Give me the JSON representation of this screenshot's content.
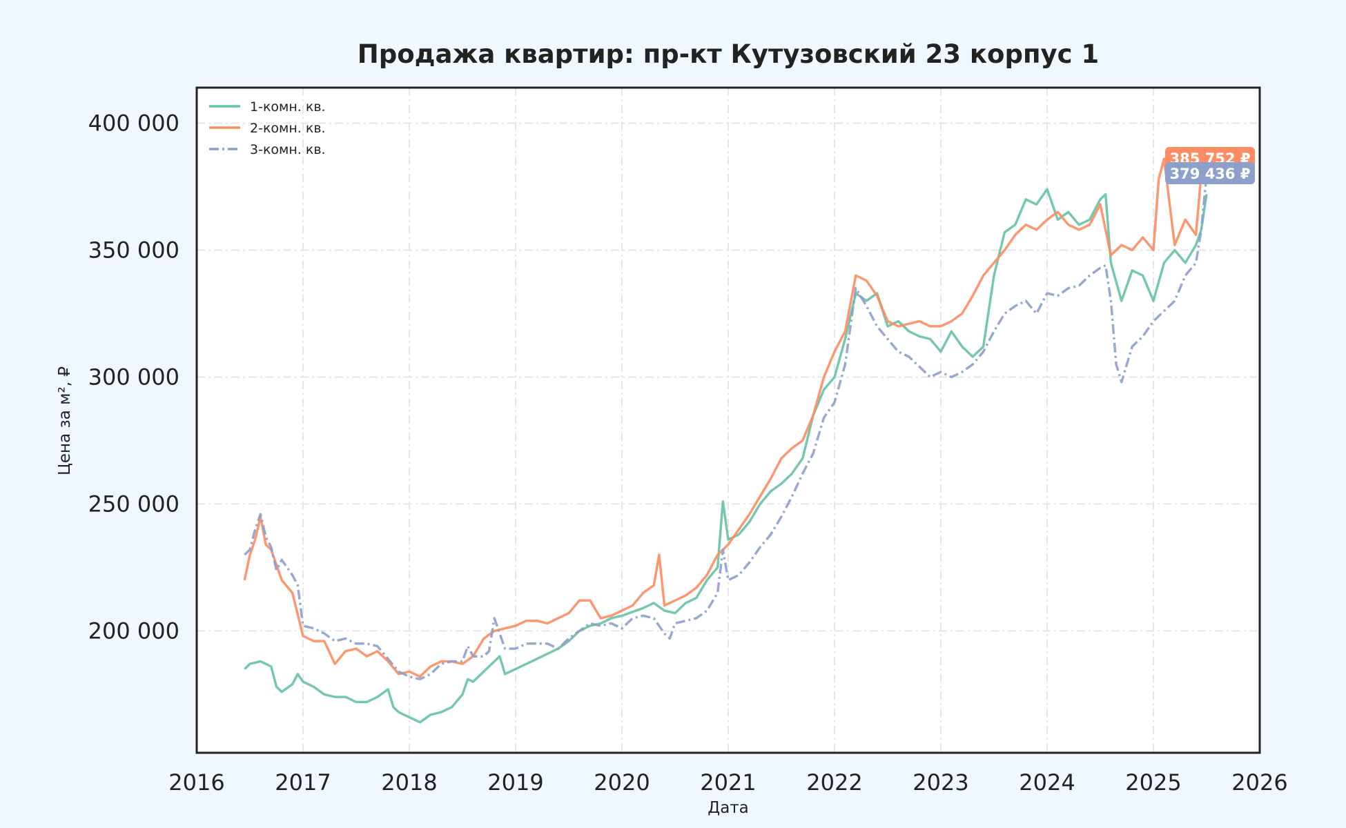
{
  "chart_data": {
    "type": "line",
    "title": "Продажа квартир: пр-кт Кутузовский 23 корпус 1",
    "xlabel": "Дата",
    "ylabel": "Цена за м², ₽",
    "xlim": [
      2016.0,
      2026.0
    ],
    "ylim": [
      152000,
      414000
    ],
    "x_ticks": [
      2016,
      2017,
      2018,
      2019,
      2020,
      2021,
      2022,
      2023,
      2024,
      2025,
      2026
    ],
    "y_ticks": [
      200000,
      250000,
      300000,
      350000,
      400000
    ],
    "y_tick_labels": [
      "200 000",
      "250 000",
      "300 000",
      "350 000",
      "400 000"
    ],
    "grid": true,
    "legend_position": "top-left",
    "series": [
      {
        "name": "1-комн. кв.",
        "color": "#66c2a5",
        "style": "solid",
        "x": [
          2016.45,
          2016.5,
          2016.6,
          2016.7,
          2016.75,
          2016.8,
          2016.9,
          2016.95,
          2017.0,
          2017.1,
          2017.2,
          2017.3,
          2017.4,
          2017.5,
          2017.6,
          2017.7,
          2017.8,
          2017.85,
          2017.9,
          2018.0,
          2018.1,
          2018.2,
          2018.3,
          2018.4,
          2018.5,
          2018.55,
          2018.6,
          2018.7,
          2018.8,
          2018.85,
          2018.9,
          2019.0,
          2019.2,
          2019.4,
          2019.5,
          2019.6,
          2019.7,
          2019.8,
          2019.9,
          2020.0,
          2020.2,
          2020.3,
          2020.4,
          2020.5,
          2020.6,
          2020.7,
          2020.8,
          2020.9,
          2020.95,
          2021.0,
          2021.1,
          2021.2,
          2021.3,
          2021.4,
          2021.5,
          2021.6,
          2021.7,
          2021.8,
          2021.9,
          2022.0,
          2022.1,
          2022.2,
          2022.3,
          2022.4,
          2022.5,
          2022.6,
          2022.7,
          2022.8,
          2022.9,
          2023.0,
          2023.1,
          2023.2,
          2023.3,
          2023.4,
          2023.5,
          2023.6,
          2023.7,
          2023.8,
          2023.9,
          2024.0,
          2024.1,
          2024.2,
          2024.3,
          2024.4,
          2024.5,
          2024.55,
          2024.6,
          2024.7,
          2024.8,
          2024.9,
          2025.0,
          2025.1,
          2025.2,
          2025.3,
          2025.4,
          2025.45,
          2025.5
        ],
        "y": [
          185000,
          187000,
          188000,
          186000,
          178000,
          176000,
          179000,
          183000,
          180000,
          178000,
          175000,
          174000,
          174000,
          172000,
          172000,
          174000,
          177000,
          170000,
          168000,
          166000,
          164000,
          167000,
          168000,
          170000,
          175000,
          181000,
          180000,
          184000,
          188000,
          190000,
          183000,
          185000,
          189000,
          193000,
          196000,
          200000,
          202000,
          203000,
          205000,
          206000,
          209000,
          211000,
          208000,
          207000,
          211000,
          213000,
          220000,
          225000,
          251000,
          236000,
          238000,
          243000,
          250000,
          255000,
          258000,
          262000,
          268000,
          285000,
          295000,
          300000,
          315000,
          333000,
          330000,
          333000,
          320000,
          322000,
          318000,
          316000,
          315000,
          310000,
          318000,
          312000,
          308000,
          312000,
          340000,
          357000,
          360000,
          370000,
          368000,
          374000,
          362000,
          365000,
          360000,
          362000,
          370000,
          372000,
          345000,
          330000,
          342000,
          340000,
          330000,
          345000,
          350000,
          345000,
          352000,
          358000,
          372000
        ]
      },
      {
        "name": "2-комн. кв.",
        "color": "#fc8d62",
        "style": "solid",
        "x": [
          2016.45,
          2016.5,
          2016.55,
          2016.6,
          2016.65,
          2016.7,
          2016.8,
          2016.9,
          2017.0,
          2017.1,
          2017.2,
          2017.3,
          2017.4,
          2017.5,
          2017.6,
          2017.7,
          2017.8,
          2017.9,
          2018.0,
          2018.1,
          2018.2,
          2018.3,
          2018.4,
          2018.5,
          2018.6,
          2018.7,
          2018.8,
          2018.9,
          2019.0,
          2019.1,
          2019.2,
          2019.3,
          2019.4,
          2019.5,
          2019.6,
          2019.7,
          2019.8,
          2019.9,
          2020.0,
          2020.1,
          2020.2,
          2020.3,
          2020.35,
          2020.4,
          2020.5,
          2020.6,
          2020.7,
          2020.8,
          2020.9,
          2021.0,
          2021.1,
          2021.2,
          2021.3,
          2021.4,
          2021.5,
          2021.6,
          2021.7,
          2021.8,
          2021.9,
          2022.0,
          2022.1,
          2022.2,
          2022.3,
          2022.4,
          2022.5,
          2022.6,
          2022.7,
          2022.8,
          2022.9,
          2023.0,
          2023.1,
          2023.2,
          2023.3,
          2023.4,
          2023.5,
          2023.6,
          2023.7,
          2023.8,
          2023.9,
          2024.0,
          2024.1,
          2024.2,
          2024.3,
          2024.4,
          2024.5,
          2024.6,
          2024.7,
          2024.8,
          2024.9,
          2025.0,
          2025.05,
          2025.1,
          2025.2,
          2025.3,
          2025.4,
          2025.45,
          2025.5
        ],
        "y": [
          220000,
          230000,
          236000,
          245000,
          234000,
          232000,
          220000,
          215000,
          198000,
          196000,
          196000,
          187000,
          192000,
          193000,
          190000,
          192000,
          188000,
          183000,
          184000,
          182000,
          186000,
          188000,
          188000,
          187000,
          190000,
          197000,
          200000,
          201000,
          202000,
          204000,
          204000,
          203000,
          205000,
          207000,
          212000,
          212000,
          205000,
          206000,
          208000,
          210000,
          215000,
          218000,
          230000,
          210000,
          212000,
          214000,
          217000,
          222000,
          230000,
          234000,
          240000,
          246000,
          253000,
          260000,
          268000,
          272000,
          275000,
          285000,
          300000,
          310000,
          318000,
          340000,
          338000,
          332000,
          322000,
          320000,
          321000,
          322000,
          320000,
          320000,
          322000,
          325000,
          332000,
          340000,
          345000,
          350000,
          356000,
          360000,
          358000,
          362000,
          365000,
          360000,
          358000,
          360000,
          368000,
          348000,
          352000,
          350000,
          355000,
          350000,
          378000,
          386000,
          352000,
          362000,
          356000,
          380000,
          385752
        ]
      },
      {
        "name": "3-комн. кв.",
        "color": "#8da0cb",
        "style": "dashdot",
        "x": [
          2016.45,
          2016.5,
          2016.55,
          2016.6,
          2016.65,
          2016.7,
          2016.75,
          2016.8,
          2016.9,
          2016.95,
          2017.0,
          2017.1,
          2017.2,
          2017.3,
          2017.4,
          2017.5,
          2017.6,
          2017.7,
          2017.8,
          2017.9,
          2018.0,
          2018.1,
          2018.2,
          2018.3,
          2018.4,
          2018.5,
          2018.55,
          2018.6,
          2018.7,
          2018.75,
          2018.8,
          2018.9,
          2019.0,
          2019.1,
          2019.2,
          2019.3,
          2019.4,
          2019.5,
          2019.6,
          2019.7,
          2019.8,
          2019.9,
          2020.0,
          2020.1,
          2020.2,
          2020.3,
          2020.4,
          2020.45,
          2020.5,
          2020.6,
          2020.7,
          2020.8,
          2020.9,
          2020.95,
          2021.0,
          2021.1,
          2021.2,
          2021.3,
          2021.4,
          2021.5,
          2021.6,
          2021.7,
          2021.8,
          2021.9,
          2022.0,
          2022.1,
          2022.2,
          2022.3,
          2022.4,
          2022.5,
          2022.6,
          2022.7,
          2022.8,
          2022.9,
          2023.0,
          2023.1,
          2023.2,
          2023.3,
          2023.4,
          2023.5,
          2023.6,
          2023.7,
          2023.8,
          2023.9,
          2024.0,
          2024.1,
          2024.2,
          2024.3,
          2024.4,
          2024.5,
          2024.55,
          2024.6,
          2024.65,
          2024.7,
          2024.8,
          2024.9,
          2025.0,
          2025.1,
          2025.2,
          2025.3,
          2025.4,
          2025.45,
          2025.5
        ],
        "y": [
          230000,
          232000,
          240000,
          246000,
          237000,
          233000,
          224000,
          228000,
          222000,
          218000,
          202000,
          201000,
          199000,
          196000,
          197000,
          195000,
          195000,
          194000,
          189000,
          184000,
          182000,
          181000,
          183000,
          187000,
          188000,
          188000,
          194000,
          190000,
          190000,
          192000,
          205000,
          193000,
          193000,
          195000,
          195000,
          195000,
          193000,
          197000,
          200000,
          203000,
          202000,
          203000,
          201000,
          205000,
          206000,
          205000,
          199000,
          197000,
          203000,
          204000,
          205000,
          208000,
          215000,
          232000,
          220000,
          222000,
          227000,
          233000,
          238000,
          245000,
          253000,
          262000,
          270000,
          284000,
          290000,
          305000,
          335000,
          328000,
          320000,
          315000,
          310000,
          308000,
          304000,
          300000,
          302000,
          300000,
          302000,
          305000,
          310000,
          318000,
          325000,
          328000,
          330000,
          325000,
          333000,
          332000,
          335000,
          336000,
          340000,
          343000,
          344000,
          330000,
          305000,
          298000,
          312000,
          316000,
          322000,
          326000,
          330000,
          340000,
          345000,
          358000,
          379436
        ]
      }
    ],
    "end_labels": [
      {
        "text": "385 752 ₽",
        "color": "#fc8d62"
      },
      {
        "text": "379 436 ₽",
        "color": "#8da0cb"
      }
    ]
  }
}
